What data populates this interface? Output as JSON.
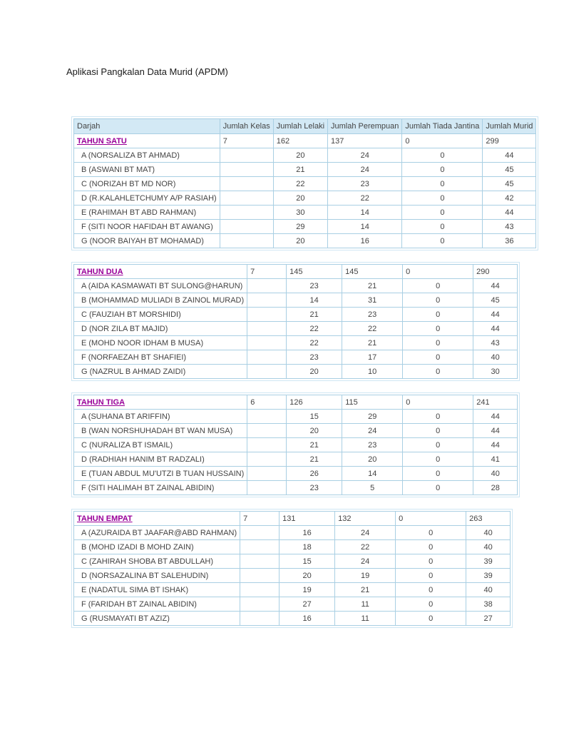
{
  "page": {
    "title": "Aplikasi Pangkalan Data Murid (APDM)"
  },
  "colors": {
    "year_link": "#990099",
    "header_bg": "#d3e9f5",
    "grid_border": "#a9cfe3",
    "outer_border": "#cfe6f3",
    "text": "#444444"
  },
  "table": {
    "headers": [
      "Darjah",
      "Jumlah Kelas",
      "Jumlah Lelaki",
      "Jumlah Perempuan",
      "Jumlah Tiada Jantina",
      "Jumlah Murid"
    ],
    "groups": [
      {
        "year": {
          "label": "TAHUN SATU",
          "kelas": "7",
          "lelaki": "162",
          "perempuan": "137",
          "tiada": "0",
          "murid": "299"
        },
        "rows": [
          {
            "darjah": "A (NORSALIZA BT AHMAD)",
            "kelas": "",
            "lelaki": "20",
            "perempuan": "24",
            "tiada": "0",
            "murid": "44"
          },
          {
            "darjah": "B (ASWANI BT MAT)",
            "kelas": "",
            "lelaki": "21",
            "perempuan": "24",
            "tiada": "0",
            "murid": "45"
          },
          {
            "darjah": "C (NORIZAH BT MD NOR)",
            "kelas": "",
            "lelaki": "22",
            "perempuan": "23",
            "tiada": "0",
            "murid": "45"
          },
          {
            "darjah": "D (R.KALAHLETCHUMY A/P RASIAH)",
            "kelas": "",
            "lelaki": "20",
            "perempuan": "22",
            "tiada": "0",
            "murid": "42"
          },
          {
            "darjah": "E (RAHIMAH BT ABD RAHMAN)",
            "kelas": "",
            "lelaki": "30",
            "perempuan": "14",
            "tiada": "0",
            "murid": "44"
          },
          {
            "darjah": "F (SITI NOOR HAFIDAH BT AWANG)",
            "kelas": "",
            "lelaki": "29",
            "perempuan": "14",
            "tiada": "0",
            "murid": "43"
          },
          {
            "darjah": "G (NOOR BAIYAH BT MOHAMAD)",
            "kelas": "",
            "lelaki": "20",
            "perempuan": "16",
            "tiada": "0",
            "murid": "36"
          }
        ]
      },
      {
        "year": {
          "label": "TAHUN DUA",
          "kelas": "7",
          "lelaki": "145",
          "perempuan": "145",
          "tiada": "0",
          "murid": "290"
        },
        "rows": [
          {
            "darjah": "A (AIDA KASMAWATI BT SULONG@HARUN)",
            "kelas": "",
            "lelaki": "23",
            "perempuan": "21",
            "tiada": "0",
            "murid": "44"
          },
          {
            "darjah": "B (MOHAMMAD MULIADI B ZAINOL MURAD)",
            "kelas": "",
            "lelaki": "14",
            "perempuan": "31",
            "tiada": "0",
            "murid": "45"
          },
          {
            "darjah": "C (FAUZIAH BT MORSHIDI)",
            "kelas": "",
            "lelaki": "21",
            "perempuan": "23",
            "tiada": "0",
            "murid": "44"
          },
          {
            "darjah": "D (NOR ZILA BT MAJID)",
            "kelas": "",
            "lelaki": "22",
            "perempuan": "22",
            "tiada": "0",
            "murid": "44"
          },
          {
            "darjah": "E (MOHD NOOR IDHAM B MUSA)",
            "kelas": "",
            "lelaki": "22",
            "perempuan": "21",
            "tiada": "0",
            "murid": "43"
          },
          {
            "darjah": "F (NORFAEZAH BT SHAFIEI)",
            "kelas": "",
            "lelaki": "23",
            "perempuan": "17",
            "tiada": "0",
            "murid": "40"
          },
          {
            "darjah": "G (NAZRUL B AHMAD ZAIDI)",
            "kelas": "",
            "lelaki": "20",
            "perempuan": "10",
            "tiada": "0",
            "murid": "30"
          }
        ]
      },
      {
        "year": {
          "label": "TAHUN TIGA",
          "kelas": "6",
          "lelaki": "126",
          "perempuan": "115",
          "tiada": "0",
          "murid": "241"
        },
        "rows": [
          {
            "darjah": "A (SUHANA BT ARIFFIN)",
            "kelas": "",
            "lelaki": "15",
            "perempuan": "29",
            "tiada": "0",
            "murid": "44"
          },
          {
            "darjah": "B (WAN NORSHUHADAH BT WAN MUSA)",
            "kelas": "",
            "lelaki": "20",
            "perempuan": "24",
            "tiada": "0",
            "murid": "44"
          },
          {
            "darjah": "C (NURALIZA BT ISMAIL)",
            "kelas": "",
            "lelaki": "21",
            "perempuan": "23",
            "tiada": "0",
            "murid": "44"
          },
          {
            "darjah": "D (RADHIAH HANIM BT RADZALI)",
            "kelas": "",
            "lelaki": "21",
            "perempuan": "20",
            "tiada": "0",
            "murid": "41"
          },
          {
            "darjah": "E (TUAN ABDUL MU'UTZI B TUAN HUSSAIN)",
            "kelas": "",
            "lelaki": "26",
            "perempuan": "14",
            "tiada": "0",
            "murid": "40"
          },
          {
            "darjah": "F (SITI HALIMAH BT ZAINAL ABIDIN)",
            "kelas": "",
            "lelaki": "23",
            "perempuan": "5",
            "tiada": "0",
            "murid": "28"
          }
        ]
      },
      {
        "year": {
          "label": "TAHUN EMPAT",
          "kelas": "7",
          "lelaki": "131",
          "perempuan": "132",
          "tiada": "0",
          "murid": "263"
        },
        "rows": [
          {
            "darjah": "A (AZURAIDA BT JAAFAR@ABD RAHMAN)",
            "kelas": "",
            "lelaki": "16",
            "perempuan": "24",
            "tiada": "0",
            "murid": "40"
          },
          {
            "darjah": "B (MOHD IZADI B MOHD ZAIN)",
            "kelas": "",
            "lelaki": "18",
            "perempuan": "22",
            "tiada": "0",
            "murid": "40"
          },
          {
            "darjah": "C (ZAHIRAH SHOBA BT ABDULLAH)",
            "kelas": "",
            "lelaki": "15",
            "perempuan": "24",
            "tiada": "0",
            "murid": "39"
          },
          {
            "darjah": "D (NORSAZALINA BT SALEHUDIN)",
            "kelas": "",
            "lelaki": "20",
            "perempuan": "19",
            "tiada": "0",
            "murid": "39"
          },
          {
            "darjah": "E (NADATUL SIMA BT ISHAK)",
            "kelas": "",
            "lelaki": "19",
            "perempuan": "21",
            "tiada": "0",
            "murid": "40"
          },
          {
            "darjah": "F (FARIDAH BT ZAINAL ABIDIN)",
            "kelas": "",
            "lelaki": "27",
            "perempuan": "11",
            "tiada": "0",
            "murid": "38"
          },
          {
            "darjah": "G (RUSMAYATI BT AZIZ)",
            "kelas": "",
            "lelaki": "16",
            "perempuan": "11",
            "tiada": "0",
            "murid": "27"
          }
        ]
      }
    ]
  }
}
